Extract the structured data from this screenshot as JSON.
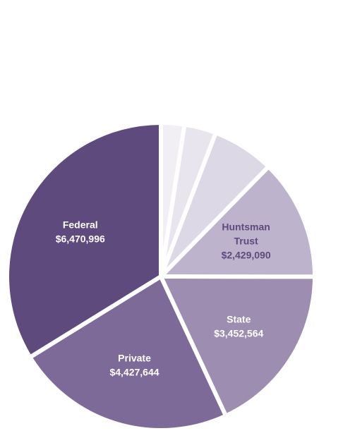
{
  "chart_data": {
    "type": "pie",
    "title": "",
    "slices": [
      {
        "label": "Federal",
        "value_label": "$6,470,996",
        "value": 6470996,
        "color": "#5e4a7d",
        "text_color": "#ffffff"
      },
      {
        "label": "Private",
        "value_label": "$4,427,644",
        "value": 4427644,
        "color": "#7e6a98",
        "text_color": "#ffffff"
      },
      {
        "label": "State",
        "value_label": "$3,452,564",
        "value": 3452564,
        "color": "#9d8db1",
        "text_color": "#ffffff"
      },
      {
        "label": "Huntsman Trust",
        "value_label": "$2,429,090",
        "value": 2429090,
        "color": "#bdb3cd",
        "text_color": "#5e4a7d"
      },
      {
        "label": "",
        "value_label": "",
        "value": 1250000,
        "color": "#ddd8e5",
        "text_color": "#5e4a7d"
      },
      {
        "label": "",
        "value_label": "",
        "value": 640000,
        "color": "#e8e5ee",
        "text_color": "#5e4a7d"
      },
      {
        "label": "",
        "value_label": "",
        "value": 470000,
        "color": "#f1eff4",
        "text_color": "#5e4a7d"
      }
    ]
  }
}
